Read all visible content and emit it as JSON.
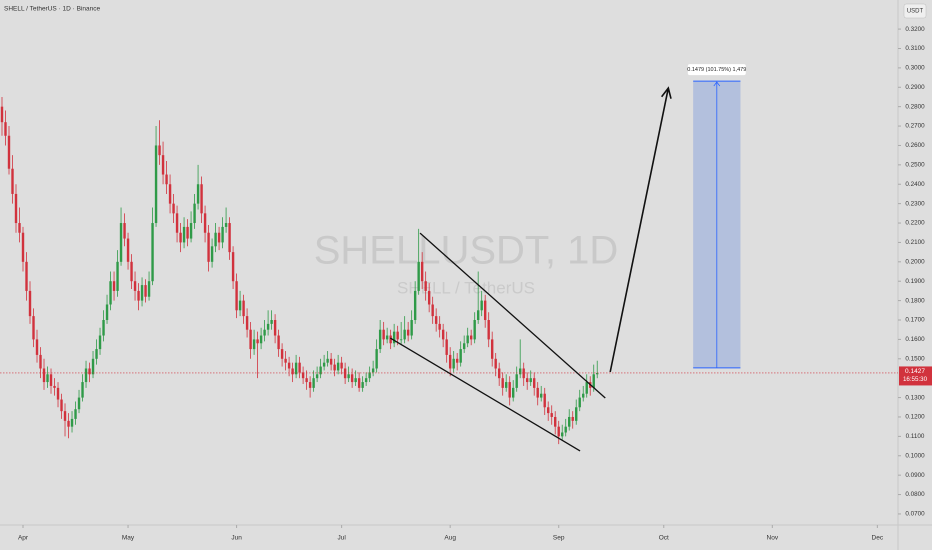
{
  "chart_data": {
    "type": "candlestick",
    "header": "SHELL / TetherUS · 1D · Binance",
    "watermark": "SHELLUSDT, 1D",
    "watermark_subtitle": "SHELL / TetherUS",
    "currency": "USDT",
    "up_color": "#2f9a48",
    "down_color": "#d1323d",
    "xlim": [
      -0.57,
      255.9
    ],
    "xticks": [
      {
        "value": 6,
        "label": "Apr"
      },
      {
        "value": 36,
        "label": "May"
      },
      {
        "value": 67,
        "label": "Jun"
      },
      {
        "value": 97,
        "label": "Jul"
      },
      {
        "value": 128,
        "label": "Aug"
      },
      {
        "value": 159,
        "label": "Sep"
      },
      {
        "value": 189,
        "label": "Oct"
      },
      {
        "value": 220,
        "label": "Nov"
      },
      {
        "value": 250,
        "label": "Dec"
      }
    ],
    "ylim": [
      0.0643,
      0.335
    ],
    "yticks": [
      {
        "value": 0.07,
        "label": "0.0700"
      },
      {
        "value": 0.08,
        "label": "0.0800"
      },
      {
        "value": 0.09,
        "label": "0.0900"
      },
      {
        "value": 0.1,
        "label": "0.1000"
      },
      {
        "value": 0.11,
        "label": "0.1100"
      },
      {
        "value": 0.12,
        "label": "0.1200"
      },
      {
        "value": 0.13,
        "label": "0.1300"
      },
      {
        "value": 0.15,
        "label": "0.1500"
      },
      {
        "value": 0.16,
        "label": "0.1600"
      },
      {
        "value": 0.17,
        "label": "0.1700"
      },
      {
        "value": 0.18,
        "label": "0.1800"
      },
      {
        "value": 0.19,
        "label": "0.1900"
      },
      {
        "value": 0.2,
        "label": "0.2000"
      },
      {
        "value": 0.21,
        "label": "0.2100"
      },
      {
        "value": 0.22,
        "label": "0.2200"
      },
      {
        "value": 0.23,
        "label": "0.2300"
      },
      {
        "value": 0.24,
        "label": "0.2400"
      },
      {
        "value": 0.25,
        "label": "0.2500"
      },
      {
        "value": 0.26,
        "label": "0.2600"
      },
      {
        "value": 0.27,
        "label": "0.2700"
      },
      {
        "value": 0.28,
        "label": "0.2800"
      },
      {
        "value": 0.29,
        "label": "0.2900"
      },
      {
        "value": 0.3,
        "label": "0.3000"
      },
      {
        "value": 0.31,
        "label": "0.3100"
      },
      {
        "value": 0.32,
        "label": "0.3200"
      }
    ],
    "candles": [
      [
        0.28,
        0.285,
        0.265,
        0.272
      ],
      [
        0.272,
        0.278,
        0.26,
        0.265
      ],
      [
        0.265,
        0.27,
        0.245,
        0.248
      ],
      [
        0.248,
        0.255,
        0.23,
        0.235
      ],
      [
        0.235,
        0.24,
        0.215,
        0.22
      ],
      [
        0.22,
        0.228,
        0.21,
        0.215
      ],
      [
        0.215,
        0.218,
        0.195,
        0.2
      ],
      [
        0.2,
        0.205,
        0.18,
        0.185
      ],
      [
        0.185,
        0.19,
        0.168,
        0.172
      ],
      [
        0.172,
        0.176,
        0.156,
        0.16
      ],
      [
        0.16,
        0.165,
        0.148,
        0.152
      ],
      [
        0.152,
        0.156,
        0.14,
        0.145
      ],
      [
        0.145,
        0.15,
        0.134,
        0.138
      ],
      [
        0.138,
        0.146,
        0.135,
        0.142
      ],
      [
        0.142,
        0.145,
        0.132,
        0.136
      ],
      [
        0.136,
        0.14,
        0.131,
        0.135
      ],
      [
        0.135,
        0.138,
        0.125,
        0.129
      ],
      [
        0.129,
        0.132,
        0.119,
        0.123
      ],
      [
        0.123,
        0.127,
        0.11,
        0.118
      ],
      [
        0.118,
        0.122,
        0.109,
        0.115
      ],
      [
        0.115,
        0.123,
        0.112,
        0.119
      ],
      [
        0.119,
        0.128,
        0.116,
        0.124
      ],
      [
        0.124,
        0.134,
        0.122,
        0.13
      ],
      [
        0.13,
        0.142,
        0.128,
        0.138
      ],
      [
        0.138,
        0.149,
        0.135,
        0.145
      ],
      [
        0.145,
        0.148,
        0.138,
        0.142
      ],
      [
        0.142,
        0.154,
        0.14,
        0.15
      ],
      [
        0.15,
        0.16,
        0.147,
        0.155
      ],
      [
        0.155,
        0.166,
        0.152,
        0.162
      ],
      [
        0.162,
        0.175,
        0.159,
        0.17
      ],
      [
        0.17,
        0.183,
        0.168,
        0.178
      ],
      [
        0.178,
        0.195,
        0.175,
        0.19
      ],
      [
        0.19,
        0.195,
        0.18,
        0.185
      ],
      [
        0.185,
        0.206,
        0.182,
        0.2
      ],
      [
        0.2,
        0.228,
        0.198,
        0.22
      ],
      [
        0.22,
        0.225,
        0.208,
        0.212
      ],
      [
        0.212,
        0.215,
        0.196,
        0.2
      ],
      [
        0.2,
        0.204,
        0.186,
        0.19
      ],
      [
        0.19,
        0.195,
        0.18,
        0.185
      ],
      [
        0.185,
        0.189,
        0.175,
        0.18
      ],
      [
        0.18,
        0.192,
        0.177,
        0.188
      ],
      [
        0.188,
        0.191,
        0.179,
        0.182
      ],
      [
        0.182,
        0.195,
        0.18,
        0.19
      ],
      [
        0.19,
        0.228,
        0.188,
        0.22
      ],
      [
        0.22,
        0.27,
        0.218,
        0.26
      ],
      [
        0.26,
        0.273,
        0.25,
        0.255
      ],
      [
        0.255,
        0.262,
        0.24,
        0.245
      ],
      [
        0.245,
        0.252,
        0.235,
        0.24
      ],
      [
        0.24,
        0.245,
        0.225,
        0.23
      ],
      [
        0.23,
        0.235,
        0.22,
        0.225
      ],
      [
        0.225,
        0.229,
        0.21,
        0.215
      ],
      [
        0.215,
        0.22,
        0.205,
        0.21
      ],
      [
        0.21,
        0.223,
        0.207,
        0.218
      ],
      [
        0.218,
        0.222,
        0.208,
        0.212
      ],
      [
        0.212,
        0.226,
        0.21,
        0.22
      ],
      [
        0.22,
        0.235,
        0.217,
        0.23
      ],
      [
        0.23,
        0.25,
        0.227,
        0.24
      ],
      [
        0.24,
        0.244,
        0.22,
        0.225
      ],
      [
        0.225,
        0.229,
        0.21,
        0.215
      ],
      [
        0.215,
        0.219,
        0.195,
        0.2
      ],
      [
        0.2,
        0.212,
        0.197,
        0.208
      ],
      [
        0.208,
        0.22,
        0.205,
        0.215
      ],
      [
        0.215,
        0.218,
        0.206,
        0.21
      ],
      [
        0.21,
        0.223,
        0.207,
        0.218
      ],
      [
        0.218,
        0.228,
        0.215,
        0.22
      ],
      [
        0.22,
        0.223,
        0.201,
        0.205
      ],
      [
        0.205,
        0.208,
        0.186,
        0.19
      ],
      [
        0.19,
        0.194,
        0.171,
        0.175
      ],
      [
        0.175,
        0.185,
        0.172,
        0.18
      ],
      [
        0.18,
        0.183,
        0.168,
        0.172
      ],
      [
        0.172,
        0.176,
        0.161,
        0.165
      ],
      [
        0.165,
        0.169,
        0.15,
        0.155
      ],
      [
        0.155,
        0.165,
        0.152,
        0.16
      ],
      [
        0.16,
        0.164,
        0.14,
        0.158
      ],
      [
        0.158,
        0.166,
        0.155,
        0.162
      ],
      [
        0.162,
        0.17,
        0.159,
        0.165
      ],
      [
        0.165,
        0.175,
        0.162,
        0.168
      ],
      [
        0.168,
        0.175,
        0.165,
        0.17
      ],
      [
        0.17,
        0.173,
        0.158,
        0.162
      ],
      [
        0.162,
        0.165,
        0.151,
        0.155
      ],
      [
        0.155,
        0.158,
        0.146,
        0.15
      ],
      [
        0.15,
        0.154,
        0.144,
        0.148
      ],
      [
        0.148,
        0.151,
        0.141,
        0.145
      ],
      [
        0.145,
        0.148,
        0.138,
        0.142
      ],
      [
        0.142,
        0.152,
        0.14,
        0.148
      ],
      [
        0.148,
        0.151,
        0.14,
        0.143
      ],
      [
        0.143,
        0.146,
        0.137,
        0.14
      ],
      [
        0.14,
        0.144,
        0.134,
        0.138
      ],
      [
        0.138,
        0.141,
        0.13,
        0.135
      ],
      [
        0.135,
        0.144,
        0.133,
        0.14
      ],
      [
        0.14,
        0.146,
        0.138,
        0.142
      ],
      [
        0.142,
        0.15,
        0.14,
        0.146
      ],
      [
        0.146,
        0.152,
        0.144,
        0.148
      ],
      [
        0.148,
        0.154,
        0.146,
        0.15
      ],
      [
        0.15,
        0.153,
        0.144,
        0.147
      ],
      [
        0.147,
        0.15,
        0.141,
        0.144
      ],
      [
        0.144,
        0.152,
        0.142,
        0.148
      ],
      [
        0.148,
        0.151,
        0.142,
        0.145
      ],
      [
        0.145,
        0.148,
        0.137,
        0.14
      ],
      [
        0.14,
        0.146,
        0.138,
        0.142
      ],
      [
        0.142,
        0.145,
        0.135,
        0.138
      ],
      [
        0.138,
        0.144,
        0.136,
        0.14
      ],
      [
        0.14,
        0.143,
        0.133,
        0.135
      ],
      [
        0.135,
        0.141,
        0.133,
        0.138
      ],
      [
        0.138,
        0.143,
        0.136,
        0.14
      ],
      [
        0.14,
        0.146,
        0.138,
        0.143
      ],
      [
        0.143,
        0.149,
        0.141,
        0.145
      ],
      [
        0.145,
        0.16,
        0.143,
        0.155
      ],
      [
        0.155,
        0.17,
        0.153,
        0.165
      ],
      [
        0.165,
        0.169,
        0.157,
        0.16
      ],
      [
        0.16,
        0.166,
        0.158,
        0.162
      ],
      [
        0.162,
        0.165,
        0.155,
        0.158
      ],
      [
        0.158,
        0.168,
        0.156,
        0.164
      ],
      [
        0.164,
        0.167,
        0.157,
        0.16
      ],
      [
        0.16,
        0.169,
        0.157,
        0.16
      ],
      [
        0.16,
        0.172,
        0.158,
        0.165
      ],
      [
        0.165,
        0.169,
        0.159,
        0.162
      ],
      [
        0.162,
        0.175,
        0.16,
        0.17
      ],
      [
        0.17,
        0.19,
        0.168,
        0.185
      ],
      [
        0.185,
        0.217,
        0.183,
        0.2
      ],
      [
        0.2,
        0.205,
        0.186,
        0.19
      ],
      [
        0.19,
        0.195,
        0.18,
        0.185
      ],
      [
        0.185,
        0.189,
        0.174,
        0.178
      ],
      [
        0.178,
        0.182,
        0.168,
        0.172
      ],
      [
        0.172,
        0.176,
        0.164,
        0.168
      ],
      [
        0.168,
        0.172,
        0.161,
        0.165
      ],
      [
        0.165,
        0.168,
        0.156,
        0.16
      ],
      [
        0.16,
        0.164,
        0.148,
        0.152
      ],
      [
        0.152,
        0.156,
        0.141,
        0.145
      ],
      [
        0.145,
        0.154,
        0.143,
        0.15
      ],
      [
        0.15,
        0.153,
        0.144,
        0.148
      ],
      [
        0.148,
        0.159,
        0.146,
        0.155
      ],
      [
        0.155,
        0.162,
        0.153,
        0.158
      ],
      [
        0.158,
        0.166,
        0.156,
        0.162
      ],
      [
        0.162,
        0.165,
        0.157,
        0.16
      ],
      [
        0.16,
        0.174,
        0.158,
        0.17
      ],
      [
        0.17,
        0.195,
        0.168,
        0.175
      ],
      [
        0.175,
        0.185,
        0.172,
        0.18
      ],
      [
        0.18,
        0.183,
        0.166,
        0.17
      ],
      [
        0.17,
        0.174,
        0.156,
        0.16
      ],
      [
        0.16,
        0.164,
        0.146,
        0.15
      ],
      [
        0.15,
        0.153,
        0.141,
        0.145
      ],
      [
        0.145,
        0.148,
        0.136,
        0.14
      ],
      [
        0.14,
        0.143,
        0.131,
        0.135
      ],
      [
        0.135,
        0.142,
        0.133,
        0.138
      ],
      [
        0.138,
        0.141,
        0.126,
        0.13
      ],
      [
        0.13,
        0.139,
        0.128,
        0.135
      ],
      [
        0.135,
        0.146,
        0.133,
        0.142
      ],
      [
        0.142,
        0.16,
        0.14,
        0.145
      ],
      [
        0.145,
        0.148,
        0.136,
        0.14
      ],
      [
        0.14,
        0.143,
        0.134,
        0.138
      ],
      [
        0.138,
        0.144,
        0.136,
        0.14
      ],
      [
        0.14,
        0.143,
        0.131,
        0.135
      ],
      [
        0.135,
        0.138,
        0.126,
        0.13
      ],
      [
        0.13,
        0.136,
        0.128,
        0.132
      ],
      [
        0.132,
        0.135,
        0.121,
        0.125
      ],
      [
        0.125,
        0.128,
        0.118,
        0.122
      ],
      [
        0.122,
        0.126,
        0.116,
        0.12
      ],
      [
        0.12,
        0.123,
        0.111,
        0.115
      ],
      [
        0.115,
        0.118,
        0.106,
        0.11
      ],
      [
        0.11,
        0.116,
        0.108,
        0.112
      ],
      [
        0.112,
        0.119,
        0.11,
        0.115
      ],
      [
        0.115,
        0.124,
        0.113,
        0.12
      ],
      [
        0.12,
        0.123,
        0.114,
        0.118
      ],
      [
        0.118,
        0.129,
        0.116,
        0.125
      ],
      [
        0.125,
        0.134,
        0.123,
        0.13
      ],
      [
        0.13,
        0.136,
        0.128,
        0.132
      ],
      [
        0.132,
        0.142,
        0.13,
        0.138
      ],
      [
        0.138,
        0.141,
        0.131,
        0.135
      ],
      [
        0.135,
        0.147,
        0.133,
        0.142
      ],
      [
        0.142,
        0.149,
        0.14,
        0.1427
      ]
    ],
    "trendlines": [
      {
        "x": [
          119.4,
          172.3
        ],
        "y": [
          0.2148,
          0.1298
        ]
      },
      {
        "x": [
          110.9,
          165.1
        ],
        "y": [
          0.1607,
          0.1025
        ]
      }
    ],
    "arrow": {
      "x": [
        173.7,
        190.3
      ],
      "y": [
        0.1432,
        0.2896
      ]
    },
    "long_position": {
      "x": [
        197.4,
        210.9
      ],
      "entry": 0.1453,
      "target": 0.2932,
      "label": "0.1479 (101.75%) 1,479"
    },
    "last_price": {
      "value": 0.1427,
      "label": "0.1427",
      "countdown": "16:55:30"
    }
  }
}
